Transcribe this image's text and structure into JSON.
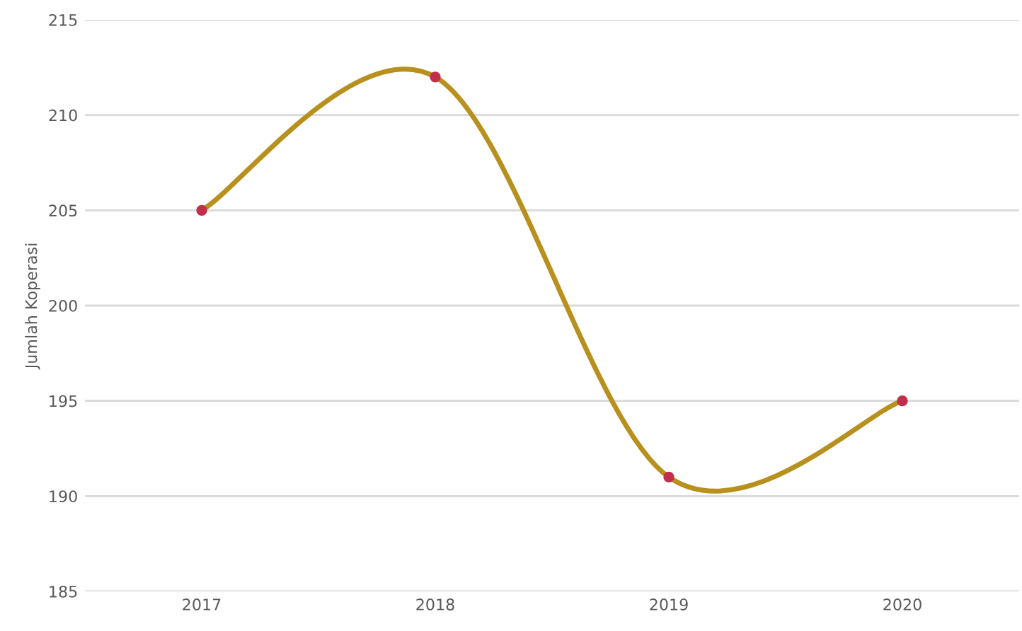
{
  "chart_data": {
    "type": "line",
    "ylabel": "Jumlah Koperasi",
    "categories": [
      "2017",
      "2018",
      "2019",
      "2020"
    ],
    "series": [
      {
        "color": "#b8901e",
        "colors": [
          "#c0304a",
          "#c0304a",
          "#c0304a",
          "#c0304a"
        ],
        "values": [
          205,
          212,
          191,
          195
        ]
      }
    ],
    "ylim": [
      185,
      215
    ],
    "yticks": [
      185,
      190,
      195,
      200,
      205,
      210,
      215
    ],
    "grid": "y",
    "marker": "circle",
    "line_style": "solid"
  }
}
